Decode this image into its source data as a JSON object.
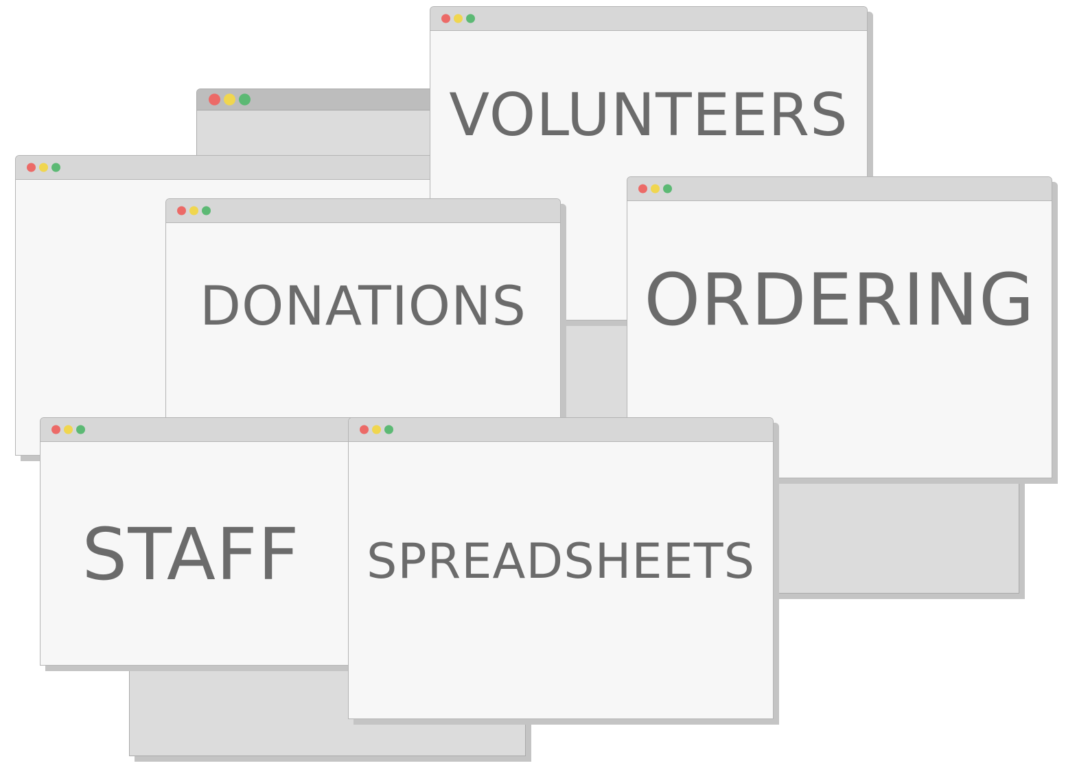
{
  "windows": {
    "volunteers": {
      "title": "VOLUNTEERS"
    },
    "donations": {
      "title": "DONATIONS"
    },
    "ordering": {
      "title": "ORDERING"
    },
    "staff": {
      "title": "STAFF"
    },
    "spreadsheets": {
      "title": "SPREADSHEETS"
    }
  },
  "colors": {
    "close_dot": "#ec6a67",
    "minimize_dot": "#f0d64f",
    "maximize_dot": "#5cb974",
    "text": "#6b6b6b",
    "window_body": "#f7f7f7",
    "title_bar": "#d7d7d7"
  },
  "icons": {
    "window_controls": [
      "close-dot-icon",
      "minimize-dot-icon",
      "maximize-dot-icon"
    ]
  }
}
